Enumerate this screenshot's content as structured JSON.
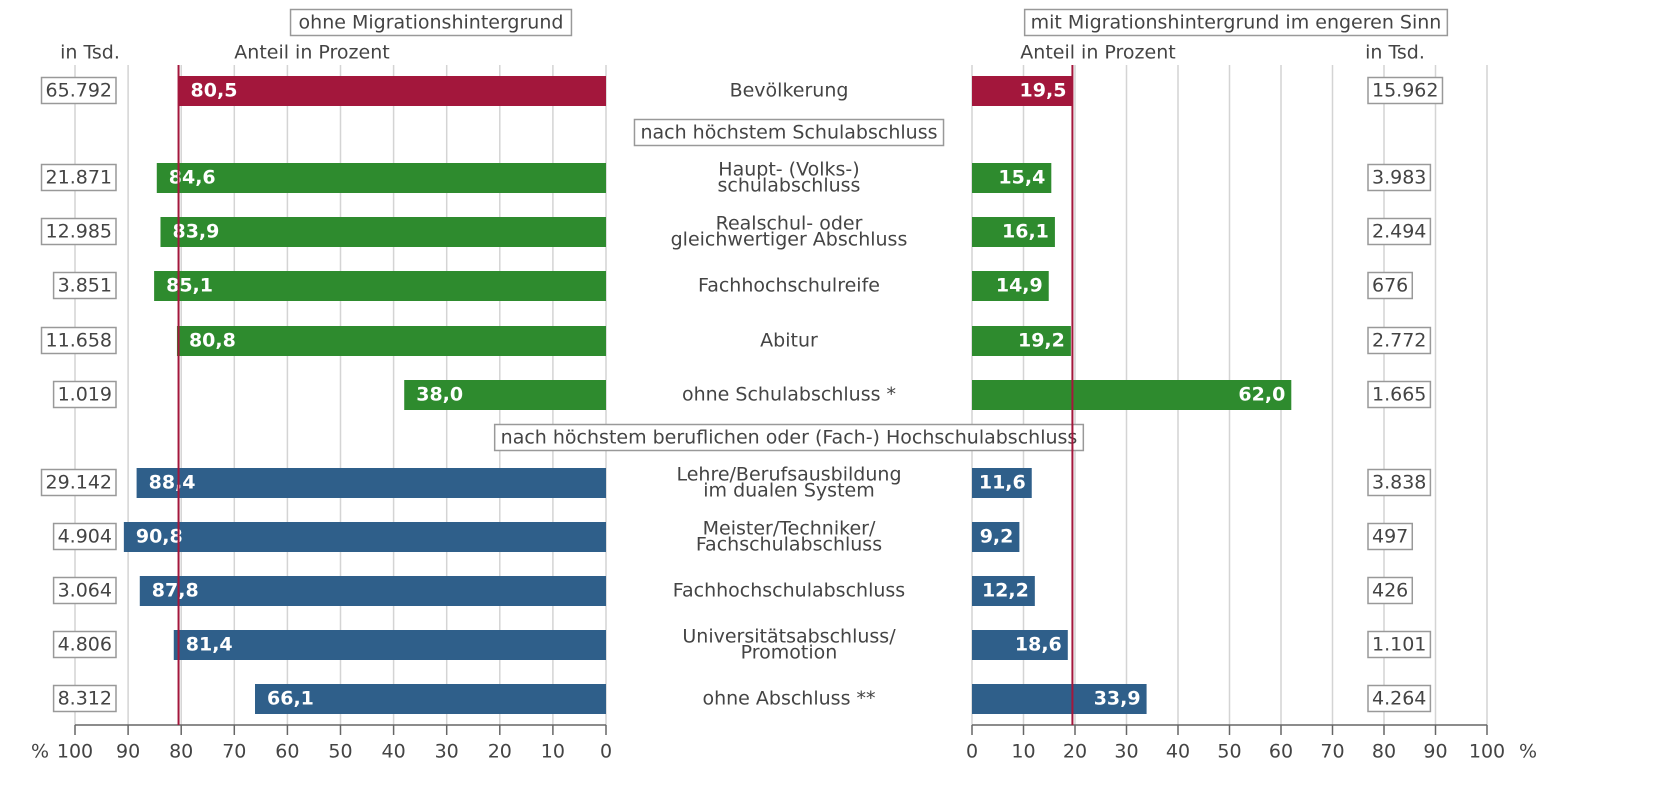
{
  "chart_data": {
    "type": "butterfly",
    "unit": "%",
    "count_unit": "in Tsd.",
    "axis_label": "Anteil in Prozent",
    "categories": [
      [
        "Bevölkerung"
      ],
      [
        "Haupt- (Volks-)",
        "schulabschluss"
      ],
      [
        "Realschul- oder",
        "gleichwertiger Abschluss"
      ],
      [
        "Fachhochschulreife"
      ],
      [
        "Abitur"
      ],
      [
        "ohne Schulabschluss *"
      ],
      [
        "Lehre/Berufsausbildung",
        "im dualen System"
      ],
      [
        "Meister/Techniker/",
        "Fachschulabschluss"
      ],
      [
        "Fachhochschulabschluss"
      ],
      [
        "Universitätsabschluss/",
        "Promotion"
      ],
      [
        "ohne Abschluss **"
      ]
    ],
    "colors": [
      "#a3173c",
      "#2e8b2e",
      "#2e8b2e",
      "#2e8b2e",
      "#2e8b2e",
      "#2e8b2e",
      "#2f5f8a",
      "#2f5f8a",
      "#2f5f8a",
      "#2f5f8a",
      "#2f5f8a"
    ],
    "sections": [
      {
        "title": "nach höchstem Schulabschluss",
        "start": 1
      },
      {
        "title": "nach höchstem beruflichen oder (Fach-) Hochschulabschluss",
        "start": 6
      }
    ],
    "series": [
      {
        "name": "ohne Migrationshintergrund",
        "side": "left",
        "values": [
          80.5,
          84.6,
          83.9,
          85.1,
          80.8,
          38.0,
          88.4,
          90.8,
          87.8,
          81.4,
          66.1
        ],
        "value_labels": [
          "80,5",
          "84,6",
          "83,9",
          "85,1",
          "80,8",
          "38,0",
          "88,4",
          "90,8",
          "87,8",
          "81,4",
          "66,1"
        ],
        "counts": [
          65792,
          21871,
          12985,
          3851,
          11658,
          1019,
          29142,
          4904,
          3064,
          4806,
          8312
        ],
        "count_labels": [
          "65.792",
          "21.871",
          "12.985",
          "3.851",
          "11.658",
          "1.019",
          "29.142",
          "4.904",
          "3.064",
          "4.806",
          "8.312"
        ]
      },
      {
        "name": "mit Migrationshintergrund im engeren Sinn",
        "side": "right",
        "values": [
          19.5,
          15.4,
          16.1,
          14.9,
          19.2,
          62.0,
          11.6,
          9.2,
          12.2,
          18.6,
          33.9
        ],
        "value_labels": [
          "19,5",
          "15,4",
          "16,1",
          "14,9",
          "19,2",
          "62,0",
          "11,6",
          "9,2",
          "12,2",
          "18,6",
          "33,9"
        ],
        "counts": [
          15962,
          3983,
          2494,
          676,
          2772,
          1665,
          3838,
          497,
          426,
          1101,
          4264
        ],
        "count_labels": [
          "15.962",
          "3.983",
          "2.494",
          "676",
          "2.772",
          "1.665",
          "3.838",
          "497",
          "426",
          "1.101",
          "4.264"
        ]
      }
    ],
    "xlim": [
      0,
      100
    ],
    "xticks": [
      0,
      10,
      20,
      30,
      40,
      50,
      60,
      70,
      80,
      90,
      100
    ]
  }
}
